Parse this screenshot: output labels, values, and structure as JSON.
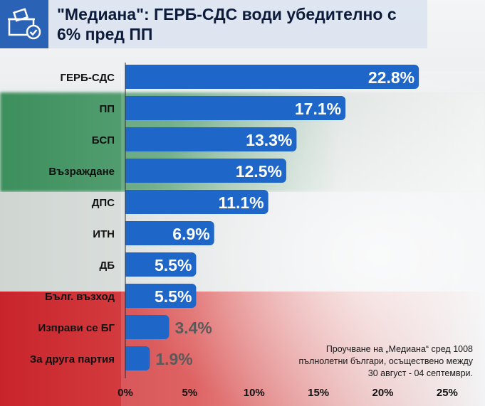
{
  "header": {
    "title": "\"Медиана\": ГЕРБ-СДС води убедително с 6% пред ПП",
    "icon": "ballot-box-icon"
  },
  "note": {
    "lines": [
      "Проучване на „Медиана“ сред 1008",
      "пълнолетни българи, осъществено между",
      "30 август - 04 септември."
    ]
  },
  "colors": {
    "bar": "#1f66c9",
    "header_icon_bg": "#2a62b5",
    "label_inside": "#ffffff",
    "label_outside": "#5a5a5a"
  },
  "chart_data": {
    "type": "bar",
    "orientation": "horizontal",
    "categories": [
      "ГЕРБ-СДС",
      "ПП",
      "БСП",
      "Възраждане",
      "ДПС",
      "ИТН",
      "ДБ",
      "Бълг. възход",
      "Изправи се БГ",
      "За друга партия"
    ],
    "values": [
      22.8,
      17.1,
      13.3,
      12.5,
      11.1,
      6.9,
      5.5,
      5.5,
      3.4,
      1.9
    ],
    "value_labels": [
      "22.8%",
      "17.1%",
      "13.3%",
      "12.5%",
      "11.1%",
      "6.9%",
      "5.5%",
      "5.5%",
      "3.4%",
      "1.9%"
    ],
    "xticks": [
      "0%",
      "5%",
      "10%",
      "15%",
      "20%",
      "25%"
    ],
    "xtick_values": [
      0,
      5,
      10,
      15,
      20,
      25
    ],
    "xlim": [
      0,
      26.5
    ],
    "grid": false
  }
}
